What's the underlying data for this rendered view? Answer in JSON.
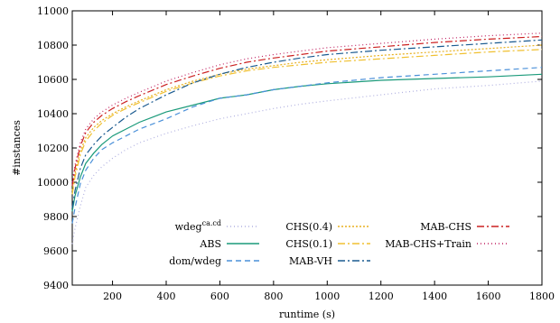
{
  "chart_data": {
    "type": "line",
    "title": "",
    "xlabel": "runtime (s)",
    "ylabel": "#instances",
    "xlim": [
      50,
      1800
    ],
    "ylim": [
      9400,
      11000
    ],
    "xticks": [
      200,
      400,
      600,
      800,
      1000,
      1200,
      1400,
      1600,
      1800
    ],
    "yticks": [
      9400,
      9600,
      9800,
      10000,
      10200,
      10400,
      10600,
      10800,
      11000
    ],
    "grid": false,
    "legend_position": "bottom-center",
    "series": [
      {
        "name": "wdeg",
        "name_sup": "ca.cd",
        "color": "#b0b0e0",
        "dash": "1,3",
        "points": [
          [
            50,
            9640
          ],
          [
            60,
            9730
          ],
          [
            80,
            9860
          ],
          [
            100,
            9970
          ],
          [
            130,
            10040
          ],
          [
            160,
            10090
          ],
          [
            200,
            10140
          ],
          [
            250,
            10190
          ],
          [
            300,
            10230
          ],
          [
            400,
            10285
          ],
          [
            500,
            10330
          ],
          [
            600,
            10370
          ],
          [
            700,
            10400
          ],
          [
            800,
            10430
          ],
          [
            900,
            10455
          ],
          [
            1000,
            10475
          ],
          [
            1200,
            10510
          ],
          [
            1400,
            10545
          ],
          [
            1600,
            10565
          ],
          [
            1800,
            10590
          ]
        ]
      },
      {
        "name": "ABS",
        "color": "#1a9a7a",
        "dash": "",
        "points": [
          [
            50,
            9830
          ],
          [
            60,
            9920
          ],
          [
            80,
            10030
          ],
          [
            100,
            10110
          ],
          [
            130,
            10170
          ],
          [
            160,
            10220
          ],
          [
            200,
            10270
          ],
          [
            250,
            10310
          ],
          [
            300,
            10350
          ],
          [
            350,
            10380
          ],
          [
            400,
            10410
          ],
          [
            500,
            10450
          ],
          [
            600,
            10490
          ],
          [
            700,
            10510
          ],
          [
            800,
            10540
          ],
          [
            900,
            10560
          ],
          [
            1000,
            10575
          ],
          [
            1200,
            10595
          ],
          [
            1400,
            10605
          ],
          [
            1600,
            10615
          ],
          [
            1800,
            10630
          ]
        ]
      },
      {
        "name": "dom/wdeg",
        "color": "#4a90d9",
        "dash": "6,4",
        "points": [
          [
            50,
            9760
          ],
          [
            60,
            9850
          ],
          [
            80,
            9990
          ],
          [
            100,
            10070
          ],
          [
            130,
            10140
          ],
          [
            160,
            10190
          ],
          [
            200,
            10230
          ],
          [
            250,
            10270
          ],
          [
            300,
            10310
          ],
          [
            400,
            10370
          ],
          [
            500,
            10440
          ],
          [
            600,
            10490
          ],
          [
            700,
            10510
          ],
          [
            800,
            10540
          ],
          [
            900,
            10560
          ],
          [
            1000,
            10580
          ],
          [
            1200,
            10610
          ],
          [
            1400,
            10630
          ],
          [
            1600,
            10650
          ],
          [
            1800,
            10670
          ]
        ]
      },
      {
        "name": "CHS(0.4)",
        "color": "#e8b020",
        "dash": "2,2",
        "points": [
          [
            50,
            9950
          ],
          [
            60,
            10050
          ],
          [
            80,
            10180
          ],
          [
            100,
            10260
          ],
          [
            130,
            10320
          ],
          [
            160,
            10360
          ],
          [
            200,
            10400
          ],
          [
            250,
            10440
          ],
          [
            300,
            10475
          ],
          [
            400,
            10540
          ],
          [
            500,
            10590
          ],
          [
            600,
            10630
          ],
          [
            700,
            10660
          ],
          [
            800,
            10680
          ],
          [
            900,
            10700
          ],
          [
            1000,
            10715
          ],
          [
            1200,
            10740
          ],
          [
            1400,
            10760
          ],
          [
            1600,
            10780
          ],
          [
            1800,
            10800
          ]
        ]
      },
      {
        "name": "CHS(0.1)",
        "color": "#f0c030",
        "dash": "8,3,2,3",
        "points": [
          [
            50,
            9930
          ],
          [
            60,
            10030
          ],
          [
            80,
            10160
          ],
          [
            100,
            10240
          ],
          [
            130,
            10300
          ],
          [
            160,
            10345
          ],
          [
            200,
            10390
          ],
          [
            250,
            10430
          ],
          [
            300,
            10465
          ],
          [
            400,
            10530
          ],
          [
            500,
            10580
          ],
          [
            600,
            10620
          ],
          [
            700,
            10650
          ],
          [
            800,
            10670
          ],
          [
            900,
            10685
          ],
          [
            1000,
            10700
          ],
          [
            1200,
            10720
          ],
          [
            1400,
            10740
          ],
          [
            1600,
            10760
          ],
          [
            1800,
            10775
          ]
        ]
      },
      {
        "name": "MAB-VH",
        "color": "#1a5a90",
        "dash": "8,3,2,3",
        "points": [
          [
            50,
            9850
          ],
          [
            60,
            9950
          ],
          [
            80,
            10080
          ],
          [
            100,
            10160
          ],
          [
            130,
            10220
          ],
          [
            160,
            10270
          ],
          [
            200,
            10320
          ],
          [
            250,
            10380
          ],
          [
            300,
            10430
          ],
          [
            400,
            10510
          ],
          [
            500,
            10580
          ],
          [
            600,
            10630
          ],
          [
            700,
            10670
          ],
          [
            800,
            10700
          ],
          [
            900,
            10725
          ],
          [
            1000,
            10745
          ],
          [
            1200,
            10770
          ],
          [
            1400,
            10790
          ],
          [
            1600,
            10810
          ],
          [
            1800,
            10830
          ]
        ]
      },
      {
        "name": "MAB-CHS",
        "color": "#cc2020",
        "dash": "8,3,2,3",
        "points": [
          [
            50,
            9980
          ],
          [
            60,
            10080
          ],
          [
            80,
            10210
          ],
          [
            100,
            10290
          ],
          [
            130,
            10350
          ],
          [
            160,
            10390
          ],
          [
            200,
            10430
          ],
          [
            250,
            10470
          ],
          [
            300,
            10505
          ],
          [
            400,
            10570
          ],
          [
            500,
            10620
          ],
          [
            600,
            10665
          ],
          [
            700,
            10700
          ],
          [
            800,
            10725
          ],
          [
            900,
            10745
          ],
          [
            1000,
            10765
          ],
          [
            1200,
            10790
          ],
          [
            1400,
            10815
          ],
          [
            1600,
            10835
          ],
          [
            1800,
            10850
          ]
        ]
      },
      {
        "name": "MAB-CHS+Train",
        "color": "#c02060",
        "dash": "1,3",
        "points": [
          [
            50,
            10000
          ],
          [
            60,
            10100
          ],
          [
            80,
            10230
          ],
          [
            100,
            10310
          ],
          [
            130,
            10370
          ],
          [
            160,
            10410
          ],
          [
            200,
            10450
          ],
          [
            250,
            10490
          ],
          [
            300,
            10525
          ],
          [
            400,
            10590
          ],
          [
            500,
            10640
          ],
          [
            600,
            10685
          ],
          [
            700,
            10720
          ],
          [
            800,
            10745
          ],
          [
            900,
            10765
          ],
          [
            1000,
            10785
          ],
          [
            1200,
            10810
          ],
          [
            1400,
            10835
          ],
          [
            1600,
            10855
          ],
          [
            1800,
            10870
          ]
        ]
      }
    ]
  }
}
